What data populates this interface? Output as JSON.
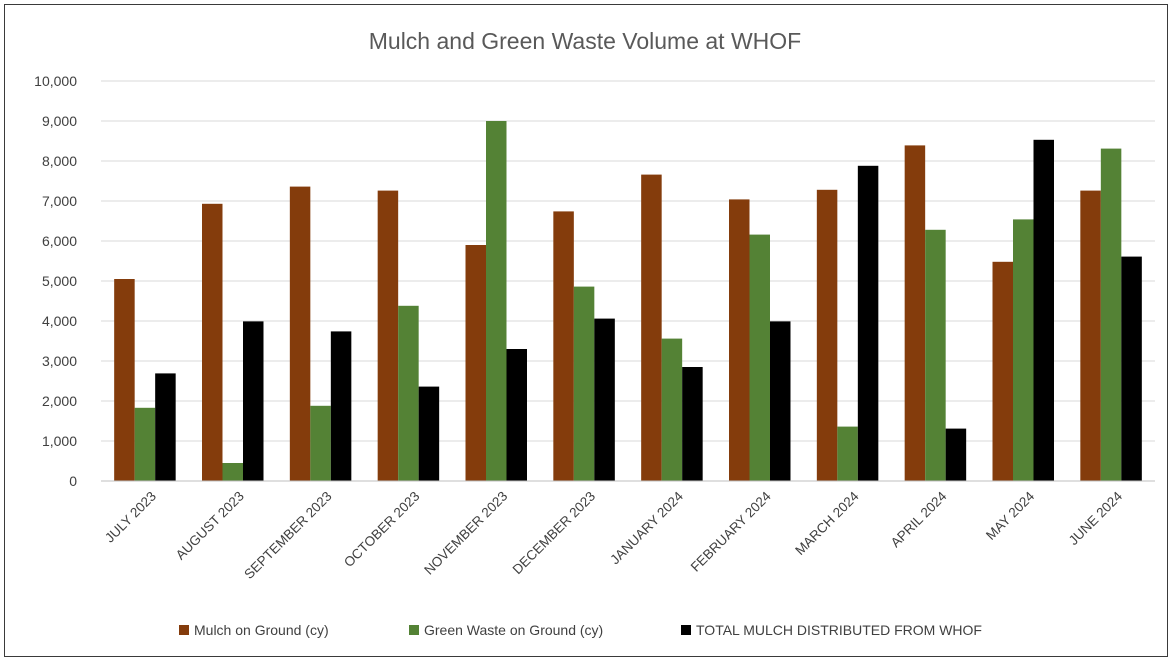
{
  "chart_data": {
    "type": "bar",
    "title": "Mulch and Green Waste Volume at WHOF",
    "xlabel": "",
    "ylabel": "",
    "ylim": [
      0,
      10000
    ],
    "yticks": [
      "0",
      "1,000",
      "2,000",
      "3,000",
      "4,000",
      "5,000",
      "6,000",
      "7,000",
      "8,000",
      "9,000",
      "10,000"
    ],
    "grid": true,
    "legend_position": "bottom",
    "categories": [
      "JULY 2023",
      "AUGUST 2023",
      "SEPTEMBER 2023",
      "OCTOBER 2023",
      "NOVEMBER 2023",
      "DECEMBER 2023",
      "JANUARY 2024",
      "FEBRUARY 2024",
      "MARCH 2024",
      "APRIL 2024",
      "MAY 2024",
      "JUNE 2024"
    ],
    "series": [
      {
        "name": "Mulch on Ground (cy)",
        "color": "#843c0c",
        "values": [
          5050,
          6930,
          7360,
          7260,
          5900,
          6740,
          7660,
          7040,
          7280,
          8390,
          5480,
          7260
        ]
      },
      {
        "name": "Green Waste on Ground (cy)",
        "color": "#548235",
        "values": [
          1830,
          450,
          1880,
          4380,
          9000,
          4860,
          3560,
          6160,
          1360,
          6280,
          6540,
          8310
        ]
      },
      {
        "name": "TOTAL MULCH DISTRIBUTED FROM WHOF",
        "color": "#000000",
        "values": [
          2690,
          3990,
          3740,
          2360,
          3300,
          4060,
          2850,
          3990,
          7880,
          1310,
          8530,
          5610
        ]
      }
    ]
  }
}
